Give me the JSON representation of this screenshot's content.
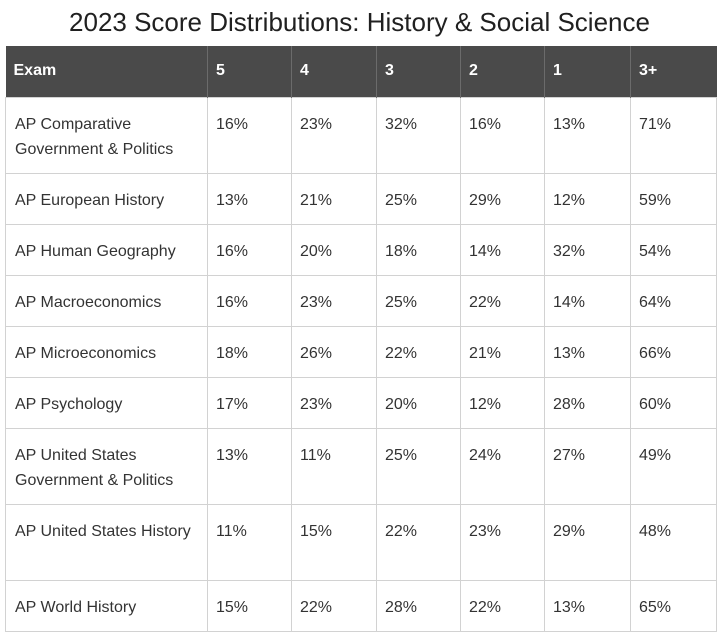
{
  "title": "2023 Score Distributions: History & Social Science",
  "table": {
    "headers": [
      "Exam",
      "5",
      "4",
      "3",
      "2",
      "1",
      "3+"
    ],
    "rows": [
      {
        "exam": "AP Comparative Government & Politics",
        "s5": "16%",
        "s4": "23%",
        "s3": "32%",
        "s2": "16%",
        "s1": "13%",
        "s3plus": "71%"
      },
      {
        "exam": "AP European History",
        "s5": "13%",
        "s4": "21%",
        "s3": "25%",
        "s2": "29%",
        "s1": "12%",
        "s3plus": "59%"
      },
      {
        "exam": "AP Human Geography",
        "s5": "16%",
        "s4": "20%",
        "s3": "18%",
        "s2": "14%",
        "s1": "32%",
        "s3plus": "54%"
      },
      {
        "exam": "AP Macroeconomics",
        "s5": "16%",
        "s4": "23%",
        "s3": "25%",
        "s2": "22%",
        "s1": "14%",
        "s3plus": "64%"
      },
      {
        "exam": "AP Microeconomics",
        "s5": "18%",
        "s4": "26%",
        "s3": "22%",
        "s2": "21%",
        "s1": "13%",
        "s3plus": "66%"
      },
      {
        "exam": "AP Psychology",
        "s5": "17%",
        "s4": "23%",
        "s3": "20%",
        "s2": "12%",
        "s1": "28%",
        "s3plus": "60%"
      },
      {
        "exam": "AP United States Government & Politics",
        "s5": "13%",
        "s4": "11%",
        "s3": "25%",
        "s2": "24%",
        "s1": "27%",
        "s3plus": "49%"
      },
      {
        "exam": "AP United States History",
        "s5": "11%",
        "s4": "15%",
        "s3": "22%",
        "s2": "23%",
        "s1": "29%",
        "s3plus": "48%"
      },
      {
        "exam": "AP World History",
        "s5": "15%",
        "s4": "22%",
        "s3": "28%",
        "s2": "22%",
        "s1": "13%",
        "s3plus": "65%"
      }
    ]
  }
}
